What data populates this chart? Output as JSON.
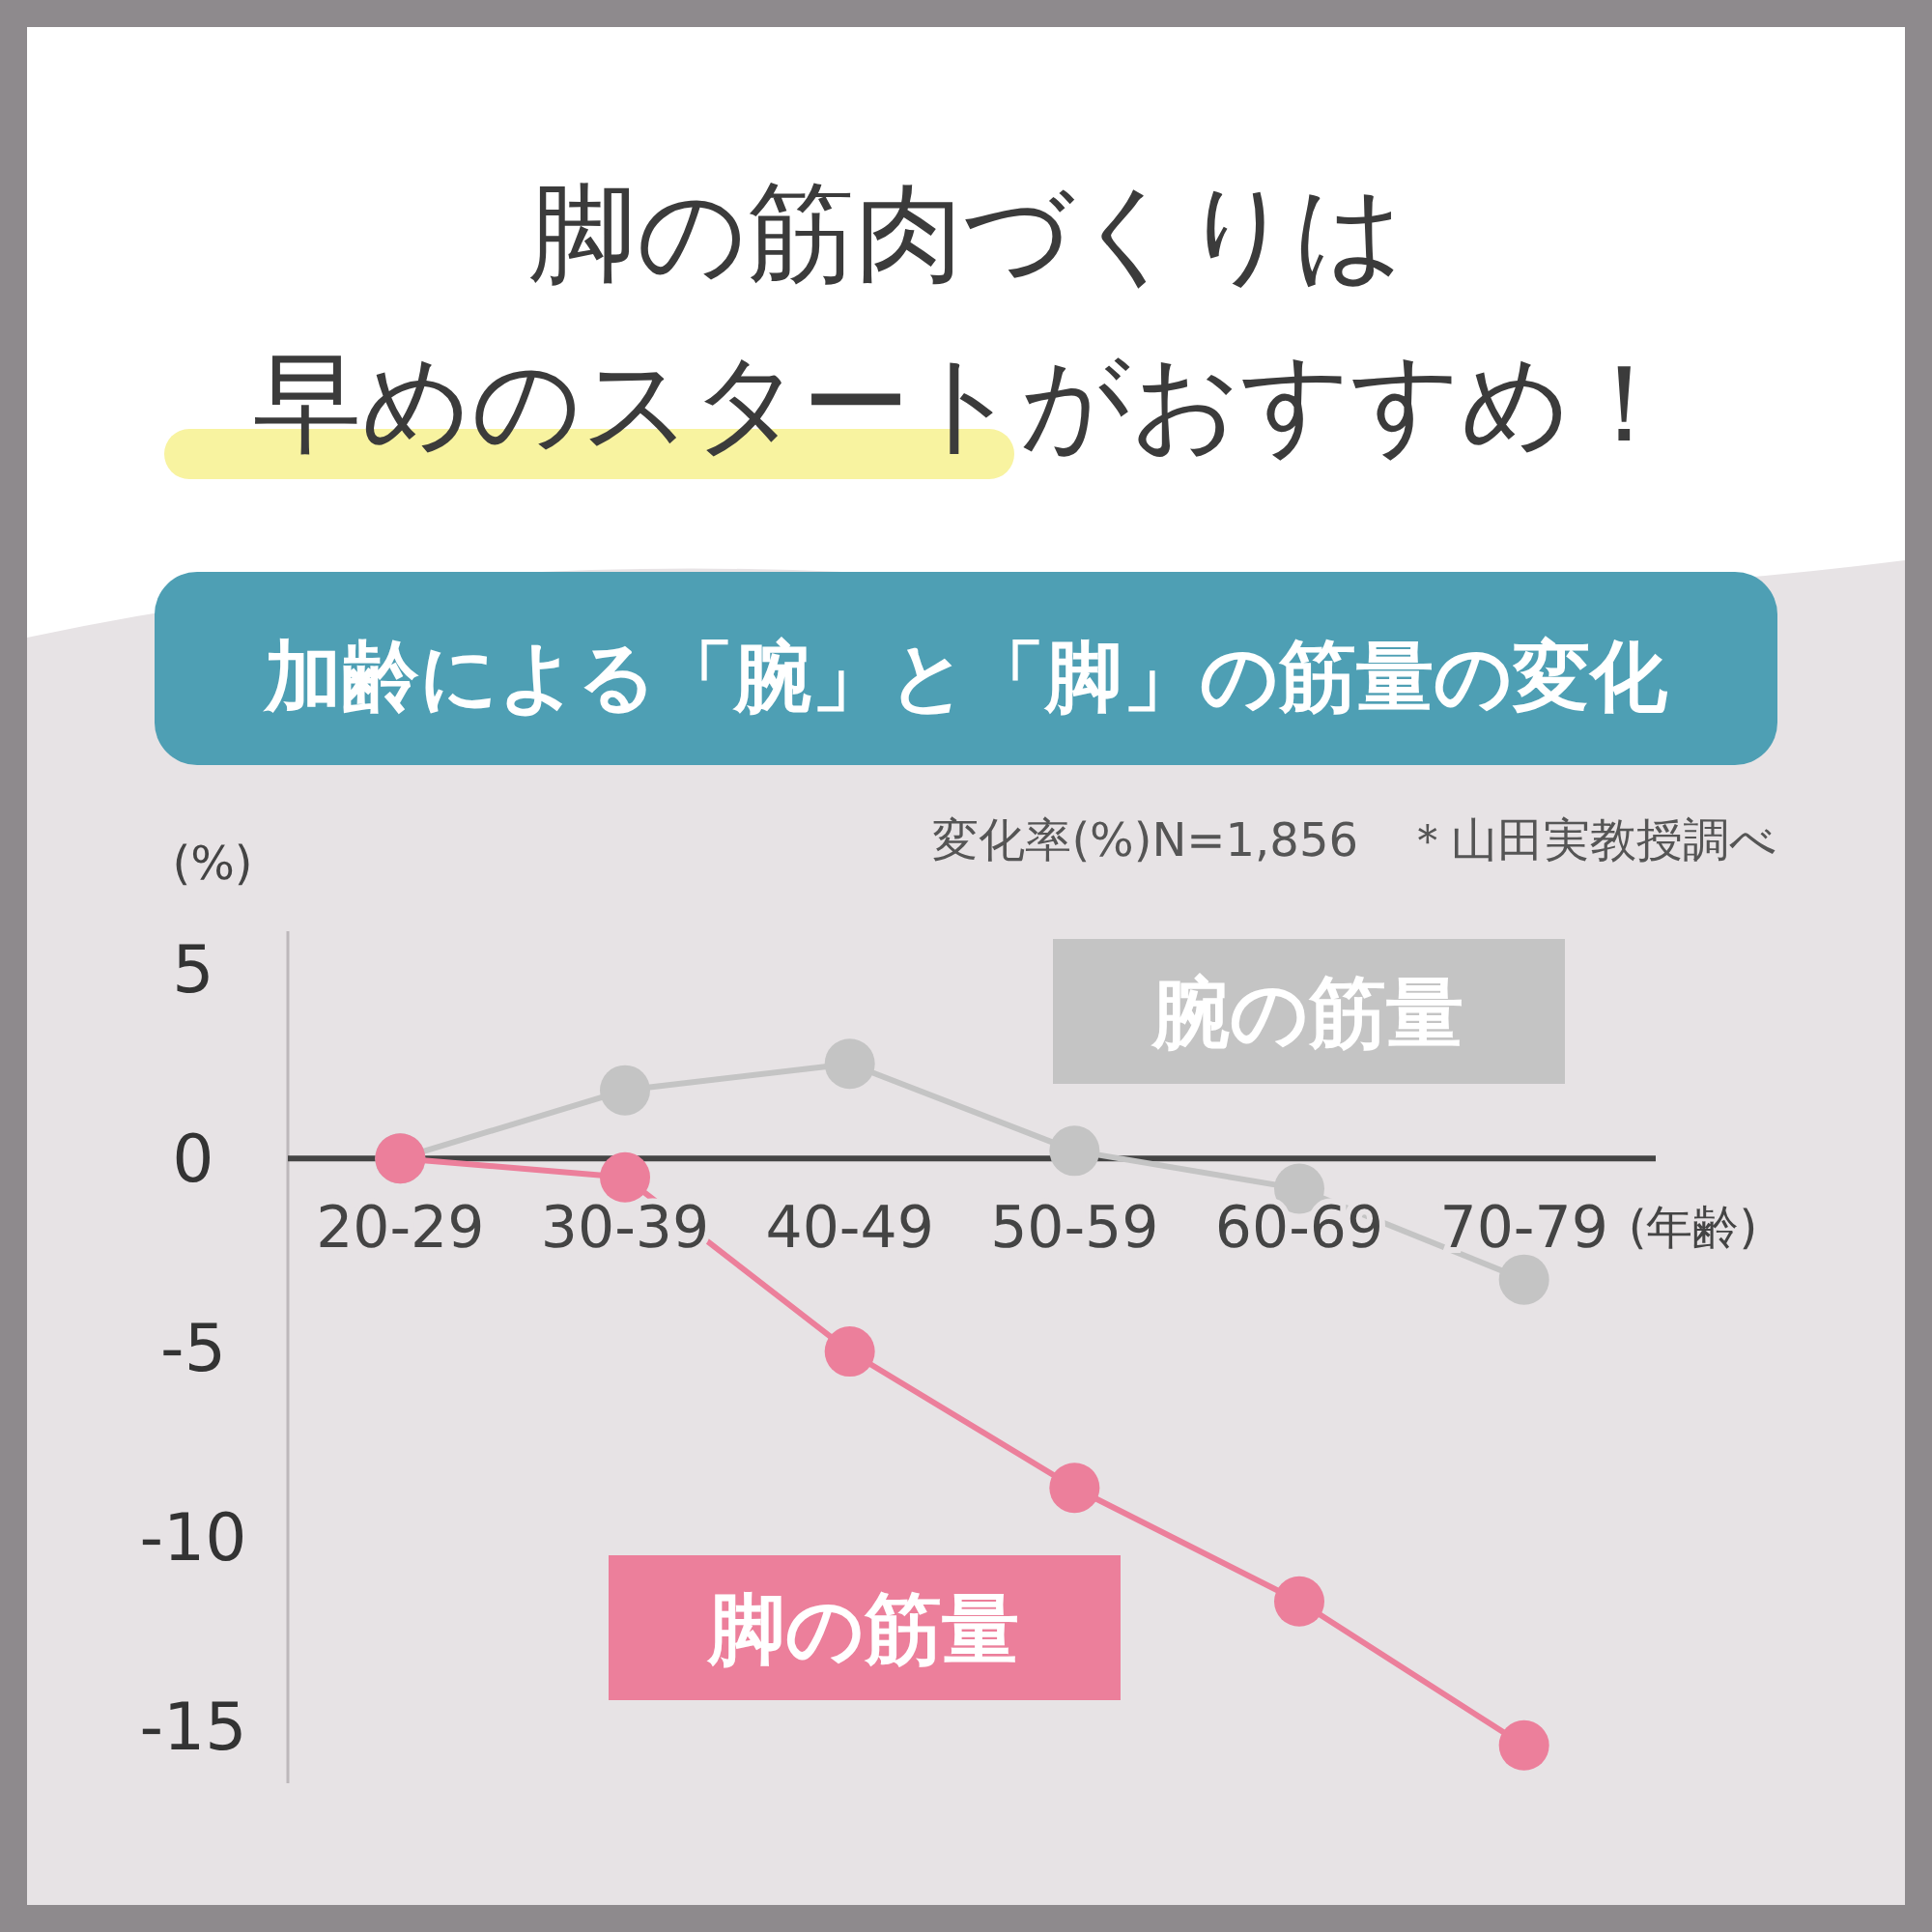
{
  "chart_data": {
    "type": "line",
    "title": "脚の筋肉づくりは",
    "subtitle": "早めのスタートがおすすめ！",
    "annotations": [
      "加齢による「腕」と「脚」の筋量の変化",
      "変化率(%)N=1,856　＊山田実教授調べ"
    ],
    "ylabel": "(%)",
    "xlabel": "(年齢)",
    "categories": [
      "20-29",
      "30-39",
      "40-49",
      "50-59",
      "60-69",
      "70-79"
    ],
    "series": [
      {
        "name": "腕の筋量",
        "color": "#c4c4c4",
        "values": [
          0,
          1.8,
          2.5,
          0.2,
          -0.8,
          -3.2
        ]
      },
      {
        "name": "脚の筋量",
        "color": "#ec7f9b",
        "values": [
          0,
          -0.5,
          -5.1,
          -8.7,
          -11.7,
          -15.5
        ]
      }
    ],
    "ylim": [
      -16.5,
      6
    ],
    "yticks": [
      5,
      0,
      -5,
      -10,
      -15
    ],
    "marker": "circle",
    "line_style": "solid",
    "grid": false
  }
}
